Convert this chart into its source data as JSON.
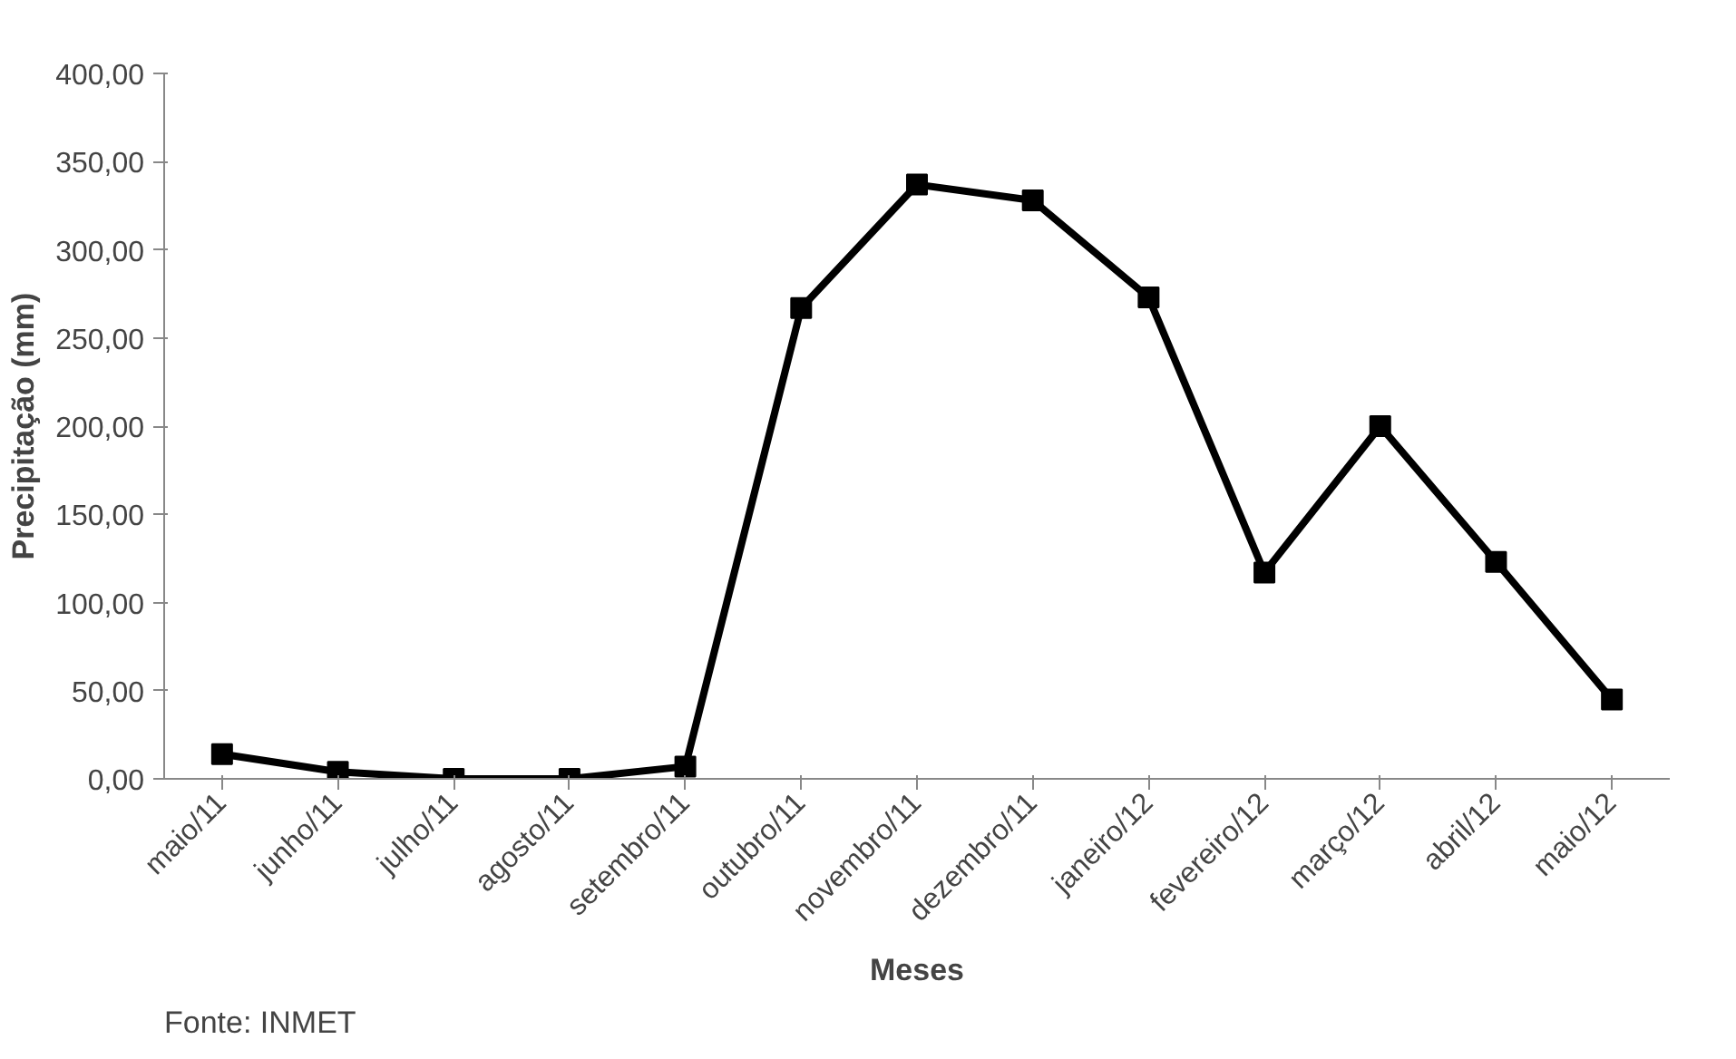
{
  "chart_data": {
    "type": "line",
    "xlabel": "Meses",
    "ylabel": "Precipitação (mm)",
    "categories": [
      "maio/11",
      "junho/11",
      "julho/11",
      "agosto/11",
      "setembro/11",
      "outubro/11",
      "novembro/11",
      "dezembro/11",
      "janeiro/12",
      "fevereiro/12",
      "março/12",
      "abril/12",
      "maio/12"
    ],
    "series": [
      {
        "color": "#000000",
        "values": [
          14,
          4,
          0,
          0,
          7,
          267,
          337,
          328,
          273,
          117,
          200,
          123,
          45
        ]
      }
    ],
    "ylim": [
      0,
      400
    ],
    "yticks": [
      {
        "value": 0,
        "label": "0,00"
      },
      {
        "value": 50,
        "label": "50,00"
      },
      {
        "value": 100,
        "label": "100,00"
      },
      {
        "value": 150,
        "label": "150,00"
      },
      {
        "value": 200,
        "label": "200,00"
      },
      {
        "value": 250,
        "label": "250,00"
      },
      {
        "value": 300,
        "label": "300,00"
      },
      {
        "value": 350,
        "label": "350,00"
      },
      {
        "value": 400,
        "label": "400,00"
      }
    ],
    "marker": "square",
    "line_style": "solid",
    "grid": false,
    "annotations": [
      "Fonte: INMET"
    ]
  }
}
